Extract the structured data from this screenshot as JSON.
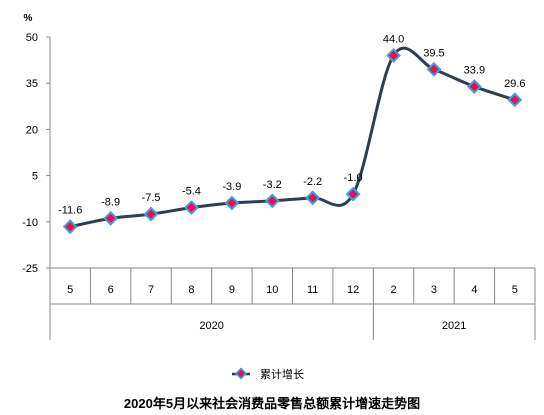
{
  "chart_data": {
    "type": "line",
    "title": "2020年5月以来社会消费品零售总额累计增速走势图",
    "ylabel": "%",
    "xlabel": "",
    "categories": [
      "5",
      "6",
      "7",
      "8",
      "9",
      "10",
      "11",
      "12",
      "2",
      "3",
      "4",
      "5"
    ],
    "groups": [
      {
        "label": "2020",
        "from": 0,
        "to": 7
      },
      {
        "label": "2021",
        "from": 8,
        "to": 11
      }
    ],
    "series": [
      {
        "name": "累计增长",
        "values": [
          -11.6,
          -8.9,
          -7.5,
          -5.4,
          -3.9,
          -3.2,
          -2.2,
          -1.0,
          44.0,
          39.5,
          33.9,
          29.6
        ],
        "data_labels": [
          "-11.6",
          "-8.9",
          "-7.5",
          "-5.4",
          "-3.9",
          "-3.2",
          "-2.2",
          "-1.0",
          "44.0",
          "39.5",
          "33.9",
          "29.6"
        ],
        "line_color": "#2f3e4e",
        "marker_fill": "#e0105a",
        "marker_stroke": "#3fa0d8"
      }
    ],
    "yticks": [
      50,
      35,
      20,
      5,
      -10,
      -25
    ],
    "ylim": [
      -25,
      50
    ],
    "grid": false,
    "legend": "bottom"
  }
}
